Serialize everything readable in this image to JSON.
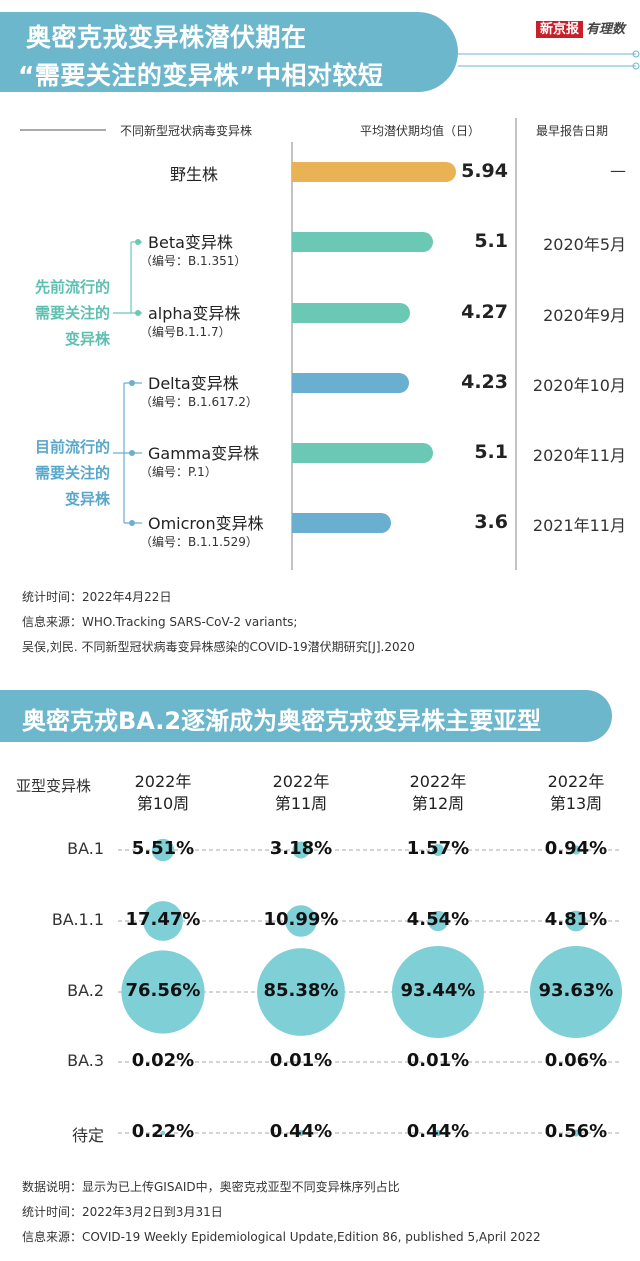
{
  "logo": {
    "brand": "新京报",
    "column": "有理数"
  },
  "chart1": {
    "title_line1": "奥密克戎变异株潜伏期在",
    "title_line2": "“需要关注的变异株”中相对较短",
    "col_variant": "不同新型冠状病毒变异株",
    "col_mean": "平均潜伏期均值（日）",
    "col_date": "最早报告日期",
    "groups": [
      {
        "label_lines": [
          "先前流行的",
          "需要关注的",
          "变异株"
        ]
      },
      {
        "label_lines": [
          "目前流行的",
          "需要关注的",
          "变异株"
        ]
      }
    ],
    "colors": {
      "wild": "#e8b255",
      "teal": "#6bc8b4",
      "blue": "#6aaed0"
    },
    "notes": [
      "统计时间：2022年4月22日",
      "信息来源：WHO.Tracking SARS-CoV-2 variants;",
      "吴俣,刘民. 不同新型冠状病毒变异株感染的COVID-19潜伏期研究[J].2020"
    ]
  },
  "chart_data": [
    {
      "type": "bar",
      "title": "奥密克戎变异株潜伏期在“需要关注的变异株”中相对较短",
      "categories": [
        "野生株",
        "Beta变异株",
        "alpha变异株",
        "Delta变异株",
        "Gamma变异株",
        "Omicron变异株"
      ],
      "codes": [
        "",
        "（编号：B.1.351）",
        "（编号B.1.1.7）",
        "（编号：B.1.617.2）",
        "（编号：P.1）",
        "（编号：B.1.1.529）"
      ],
      "values": [
        5.94,
        5.1,
        4.27,
        4.23,
        5.1,
        3.6
      ],
      "value_labels": [
        "5.94",
        "5.1",
        "4.27",
        "4.23",
        "5.1",
        "3.6"
      ],
      "dates": [
        "—",
        "2020年5月",
        "2020年9月",
        "2020年10月",
        "2020年11月",
        "2021年11月"
      ],
      "bar_colors": [
        "#e8b255",
        "#6bc8b4",
        "#6bc8b4",
        "#6aaed0",
        "#6bc8b4",
        "#6aaed0"
      ],
      "xlim": [
        0,
        6.8
      ]
    },
    {
      "type": "bubble",
      "title": "奥密克戎BA.2逐渐成为奥密克戎变异株主要亚型",
      "row_header": "亚型变异株",
      "columns": [
        [
          "2022年",
          "第10周"
        ],
        [
          "2022年",
          "第11周"
        ],
        [
          "2022年",
          "第12周"
        ],
        [
          "2022年",
          "第13周"
        ]
      ],
      "rows": [
        "BA.1",
        "BA.1.1",
        "BA.2",
        "BA.3",
        "待定"
      ],
      "values": [
        [
          5.51,
          3.18,
          1.57,
          0.94
        ],
        [
          17.47,
          10.99,
          4.54,
          4.81
        ],
        [
          76.56,
          85.38,
          93.44,
          93.63
        ],
        [
          0.02,
          0.01,
          0.01,
          0.06
        ],
        [
          0.22,
          0.44,
          0.44,
          0.56
        ]
      ],
      "labels": [
        [
          "5.51%",
          "3.18%",
          "1.57%",
          "0.94%"
        ],
        [
          "17.47%",
          "10.99%",
          "4.54%",
          "4.81%"
        ],
        [
          "76.56%",
          "85.38%",
          "93.44%",
          "93.63%"
        ],
        [
          "0.02%",
          "0.01%",
          "0.01%",
          "0.06%"
        ],
        [
          "0.22%",
          "0.44%",
          "0.44%",
          "0.56%"
        ]
      ],
      "bubble_color": "#7fcfd6"
    }
  ],
  "chart2": {
    "title": "奥密克戎BA.2逐渐成为奥密克戎变异株主要亚型",
    "notes": [
      "数据说明：显示为已上传GISAID中，奥密克戎亚型不同变异株序列占比",
      "统计时间：2022年3月2日到3月31日",
      "信息来源：COVID-19 Weekly Epidemiological Update,Edition 86, published 5,April 2022"
    ]
  }
}
